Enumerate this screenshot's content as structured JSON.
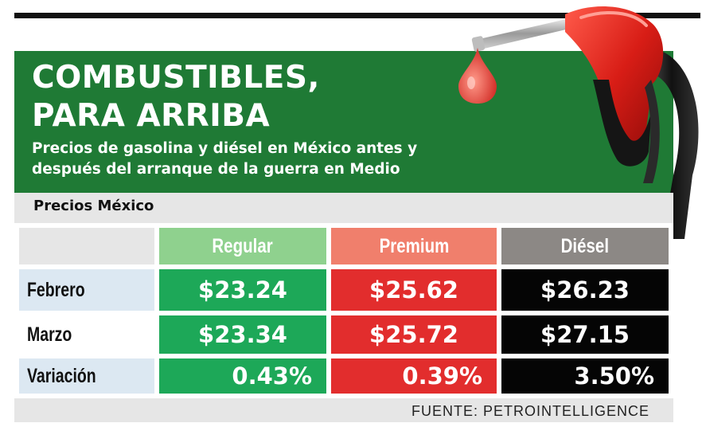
{
  "title": {
    "line1": "COMBUSTIBLES,",
    "line2": "PARA ARRIBA"
  },
  "subtitle": "Precios de gasolina y diésel en México antes y después del arranque de la guerra en Medio",
  "section_label": "Precios México",
  "columns": [
    {
      "label": "Regular",
      "header_color": "#8fd18e",
      "cell_color": "#1da858"
    },
    {
      "label": "Premium",
      "header_color": "#f07f6c",
      "cell_color": "#e22d2d"
    },
    {
      "label": "Diésel",
      "header_color": "#8c8885",
      "cell_color": "#050505"
    }
  ],
  "rows": [
    {
      "label": "Febrero",
      "values": [
        "$23.24",
        "$25.62",
        "$26.23"
      ]
    },
    {
      "label": "Marzo",
      "values": [
        "$23.34",
        "$25.72",
        "$27.15"
      ]
    },
    {
      "label": "Variación",
      "values": [
        "0.43%",
        "0.39%",
        "3.50%"
      ]
    }
  ],
  "source": "FUENTE: PETROINTELLIGENCE",
  "colors": {
    "header_green": "#1f7a35",
    "label_cell": "#dce8f2",
    "gray_bar": "#e6e6e6"
  },
  "icons": {
    "pump": "fuel-nozzle-icon",
    "drop": "fuel-drop-icon"
  }
}
